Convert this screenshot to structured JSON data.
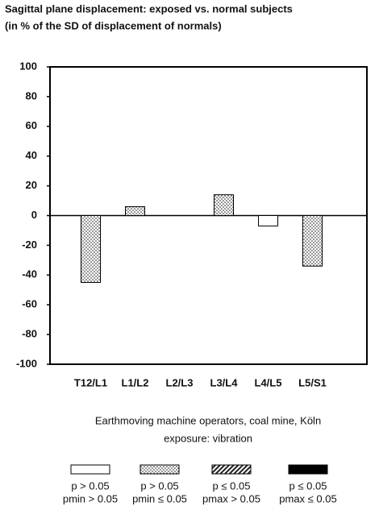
{
  "chart_data": {
    "type": "bar",
    "title": [
      "Sagittal plane displacement:  exposed vs. normal subjects",
      "(in % of the SD of displacement of normals)"
    ],
    "categories": [
      "T12/L1",
      "L1/L2",
      "L2/L3",
      "L3/L4",
      "L4/L5",
      "L5/S1"
    ],
    "values": [
      -45,
      6,
      0,
      14,
      -7,
      -34
    ],
    "bar_patterns": [
      "dotted",
      "dotted",
      "dotted",
      "dotted",
      "white",
      "dotted"
    ],
    "ylim": [
      -100,
      100
    ],
    "yticks": [
      100,
      80,
      60,
      40,
      20,
      0,
      -20,
      -40,
      -60,
      -80,
      -100
    ],
    "grid": false,
    "caption": [
      "Earthmoving machine operators, coal mine, Köln",
      "exposure:  vibration"
    ],
    "legend": [
      {
        "pattern": "white",
        "label": [
          "p > 0.05",
          "pmin > 0.05"
        ]
      },
      {
        "pattern": "dotted",
        "label": [
          "p > 0.05",
          "pmin ≤ 0.05"
        ]
      },
      {
        "pattern": "hatched",
        "label": [
          "p ≤ 0.05",
          "pmax > 0.05"
        ]
      },
      {
        "pattern": "black",
        "label": [
          "p ≤ 0.05",
          "pmax ≤ 0.05"
        ]
      }
    ]
  }
}
